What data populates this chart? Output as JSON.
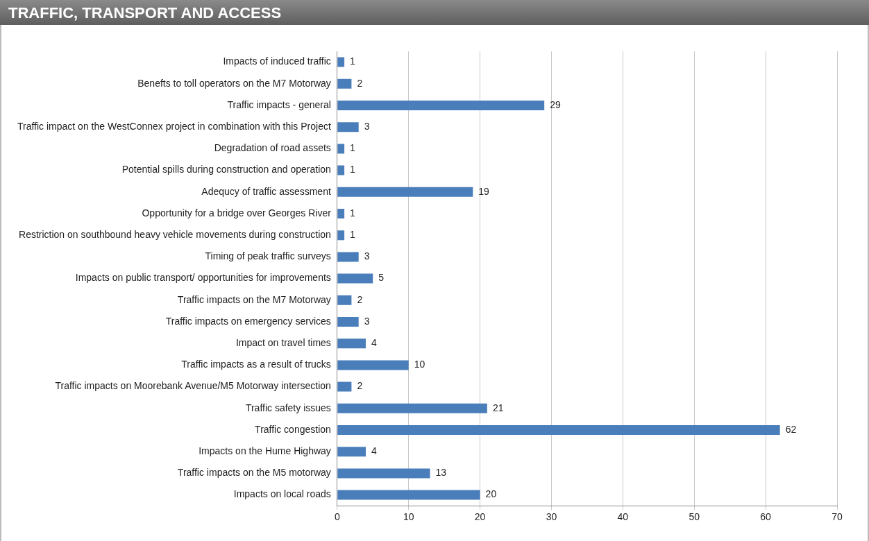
{
  "chart_data": {
    "type": "bar",
    "orientation": "horizontal",
    "title": "TRAFFIC, TRANSPORT AND ACCESS",
    "categories": [
      "Impacts of induced traffic",
      "Benefts to toll operators on the M7 Motorway",
      "Traffic impacts - general",
      "Traffic impact on the WestConnex project in combination with this Project",
      "Degradation of road assets",
      "Potential spills during construction and operation",
      "Adequcy of traffic assessment",
      "Opportunity for a bridge over Georges River",
      "Restriction on southbound heavy vehicle movements during construction",
      "Timing of peak traffic surveys",
      "Impacts on public transport/ opportunities for improvements",
      "Traffic impacts on the M7 Motorway",
      "Traffic impacts on emergency services",
      "Impact on travel times",
      "Traffic impacts as a result of trucks",
      "Traffic impacts on Moorebank Avenue/M5 Motorway intersection",
      "Traffic safety issues",
      "Traffic congestion",
      "Impacts on the Hume Highway",
      "Traffic impacts on the M5 motorway",
      "Impacts on local roads"
    ],
    "values": [
      1,
      2,
      29,
      3,
      1,
      1,
      19,
      1,
      1,
      3,
      5,
      2,
      3,
      4,
      10,
      2,
      21,
      62,
      4,
      13,
      20
    ],
    "color": "#4a7ebb",
    "xlim": [
      0,
      70
    ],
    "xticks": [
      0,
      10,
      20,
      30,
      40,
      50,
      60,
      70
    ],
    "grid": "x",
    "legend": false,
    "data_labels": true
  }
}
